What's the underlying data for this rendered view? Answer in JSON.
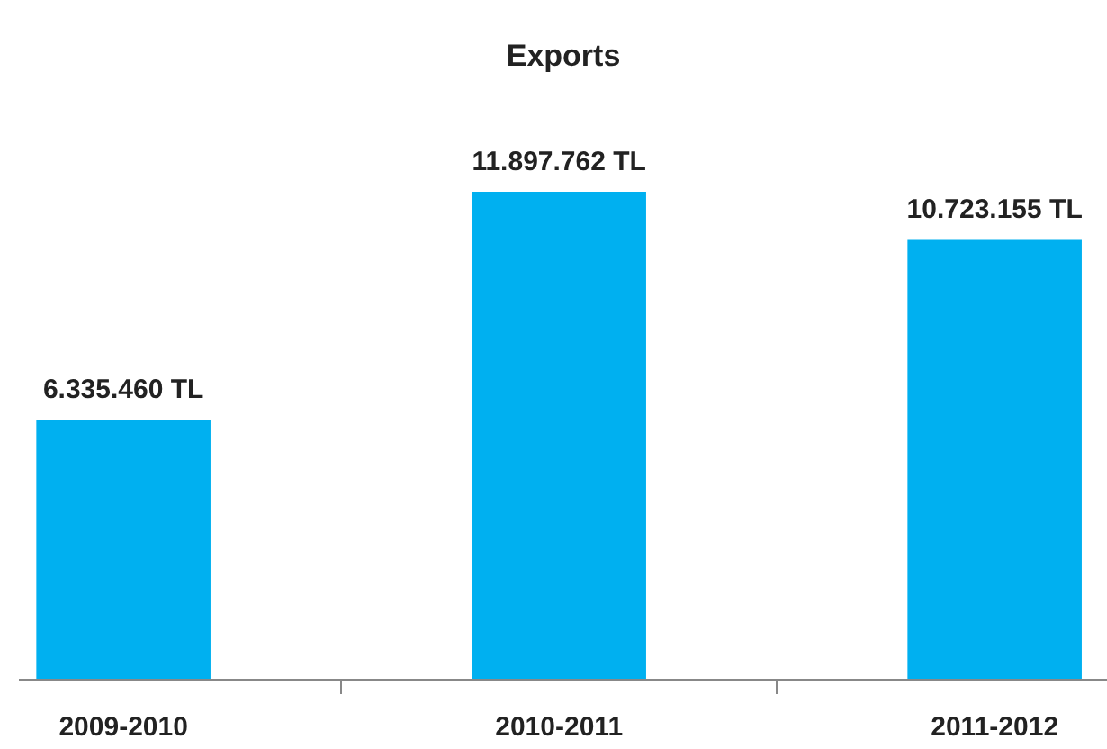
{
  "chart_data": {
    "type": "bar",
    "title": "Exports",
    "categories": [
      "2009-2010",
      "2010-2011",
      "2011-2012"
    ],
    "values": [
      6335460,
      11897762,
      10723155
    ],
    "value_labels": [
      "6.335.460 TL",
      "11.897.762 TL",
      "10.723.155 TL"
    ],
    "color": "#00b0f0",
    "grid": false
  }
}
